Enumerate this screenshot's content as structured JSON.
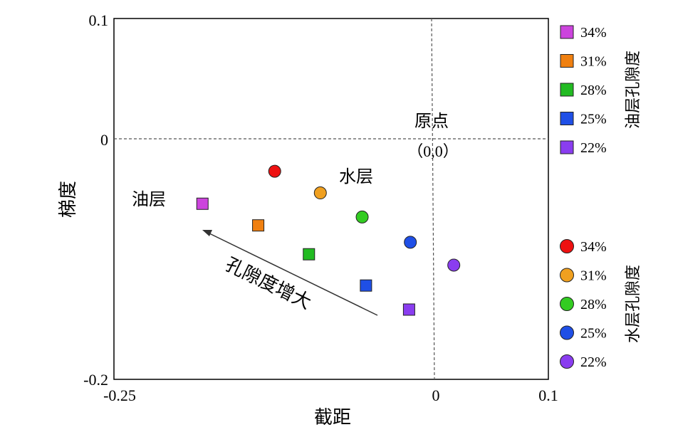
{
  "chart_data": {
    "type": "scatter",
    "title": "",
    "xlabel": "截距",
    "ylabel": "梯度",
    "xlim": [
      -0.25,
      0.1
    ],
    "ylim": [
      -0.2,
      0.1
    ],
    "x_ticks": [
      "-0.25",
      "0",
      "0.1"
    ],
    "y_ticks": [
      "0.1",
      "0",
      "-0.2"
    ],
    "grid": false,
    "reference_lines": {
      "x": 0,
      "y": 0
    },
    "series": [
      {
        "name": "油层孔隙度",
        "marker": "square",
        "points": [
          {
            "label": "34%",
            "x": -0.183,
            "y": -0.054,
            "color": "#cc44dd"
          },
          {
            "label": "31%",
            "x": -0.139,
            "y": -0.072,
            "color": "#f08010"
          },
          {
            "label": "28%",
            "x": -0.099,
            "y": -0.096,
            "color": "#22bb22"
          },
          {
            "label": "25%",
            "x": -0.054,
            "y": -0.122,
            "color": "#1f4fe6"
          },
          {
            "label": "22%",
            "x": -0.02,
            "y": -0.142,
            "color": "#8a3df0"
          }
        ]
      },
      {
        "name": "水层孔隙度",
        "marker": "circle",
        "points": [
          {
            "label": "34%",
            "x": -0.126,
            "y": -0.027,
            "color": "#ee1111"
          },
          {
            "label": "31%",
            "x": -0.09,
            "y": -0.045,
            "color": "#f0a020"
          },
          {
            "label": "28%",
            "x": -0.057,
            "y": -0.065,
            "color": "#33cc22"
          },
          {
            "label": "25%",
            "x": -0.019,
            "y": -0.086,
            "color": "#1f4fe6"
          },
          {
            "label": "22%",
            "x": 0.017,
            "y": -0.105,
            "color": "#8a3df0"
          }
        ]
      }
    ],
    "annotations": {
      "origin": "原点",
      "origin_coords": "（0,0）",
      "water_layer": "水层",
      "oil_layer": "油层",
      "arrow_label": "孔隙度增大"
    },
    "legends": [
      {
        "title": "油层孔隙度",
        "marker": "square",
        "entries": [
          {
            "label": "34%",
            "color": "#cc44dd"
          },
          {
            "label": "31%",
            "color": "#f08010"
          },
          {
            "label": "28%",
            "color": "#22bb22"
          },
          {
            "label": "25%",
            "color": "#1f4fe6"
          },
          {
            "label": "22%",
            "color": "#8a3df0"
          }
        ]
      },
      {
        "title": "水层孔隙度",
        "marker": "circle",
        "entries": [
          {
            "label": "34%",
            "color": "#ee1111"
          },
          {
            "label": "31%",
            "color": "#f0a020"
          },
          {
            "label": "28%",
            "color": "#33cc22"
          },
          {
            "label": "25%",
            "color": "#1f4fe6"
          },
          {
            "label": "22%",
            "color": "#8a3df0"
          }
        ]
      }
    ]
  }
}
